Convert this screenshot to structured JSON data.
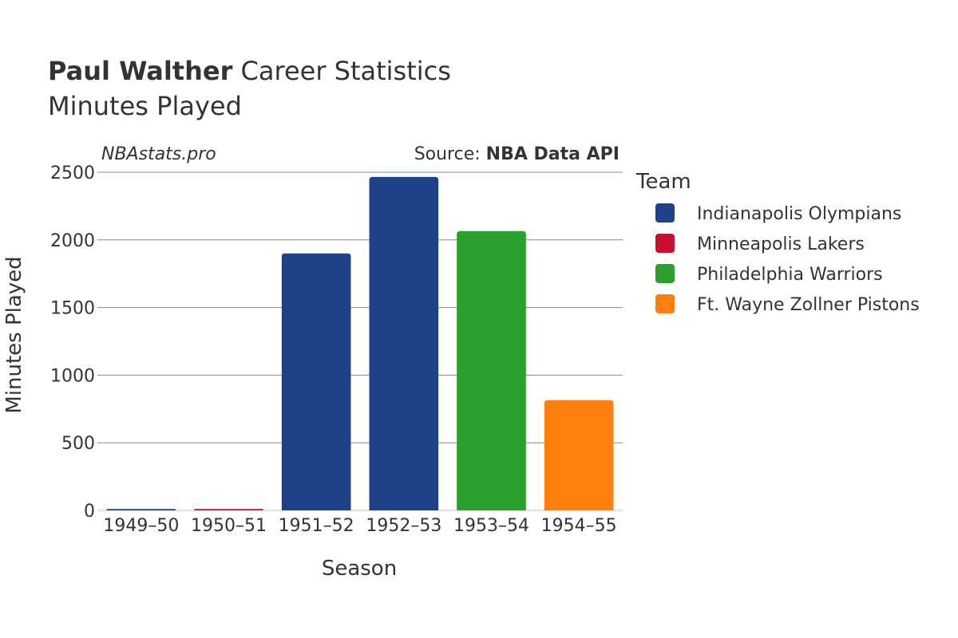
{
  "header": {
    "player": "Paul Walther",
    "title_rest": "Career Statistics",
    "subtitle": "Minutes Played",
    "brand": "NBAstats.pro",
    "source_prefix": "Source: ",
    "source_name": "NBA Data API"
  },
  "chart_data": {
    "type": "bar",
    "title": "Paul Walther Career Statistics",
    "subtitle": "Minutes Played",
    "xlabel": "Season",
    "ylabel": "Minutes Played",
    "ylim": [
      0,
      2500
    ],
    "yticks": [
      0,
      500,
      1000,
      1500,
      2000,
      2500
    ],
    "ytick_labels": [
      "0",
      "500",
      "1000",
      "1500",
      "2000",
      "2500"
    ],
    "categories": [
      "1949–50",
      "1950–51",
      "1951–52",
      "1952–53",
      "1953–54",
      "1954–55"
    ],
    "bars": [
      {
        "season": "1949–50",
        "team": "Indianapolis Olympians",
        "value": 10
      },
      {
        "season": "1950–51",
        "team": "Minneapolis Lakers",
        "value": 10
      },
      {
        "season": "1951–52",
        "team": "Indianapolis Olympians",
        "value": 1900
      },
      {
        "season": "1952–53",
        "team": "Indianapolis Olympians",
        "value": 2465
      },
      {
        "season": "1953–54",
        "team": "Philadelphia Warriors",
        "value": 2065
      },
      {
        "season": "1954–55",
        "team": "Ft. Wayne Zollner Pistons",
        "value": 815
      }
    ],
    "grid": true,
    "legend": {
      "title": "Team",
      "placement": "right",
      "entries": [
        {
          "name": "Indianapolis Olympians",
          "color": "#1d428a"
        },
        {
          "name": "Minneapolis Lakers",
          "color": "#c8102e"
        },
        {
          "name": "Philadelphia Warriors",
          "color": "#2ca02c"
        },
        {
          "name": "Ft. Wayne Zollner Pistons",
          "color": "#ff7f0e"
        }
      ]
    }
  }
}
